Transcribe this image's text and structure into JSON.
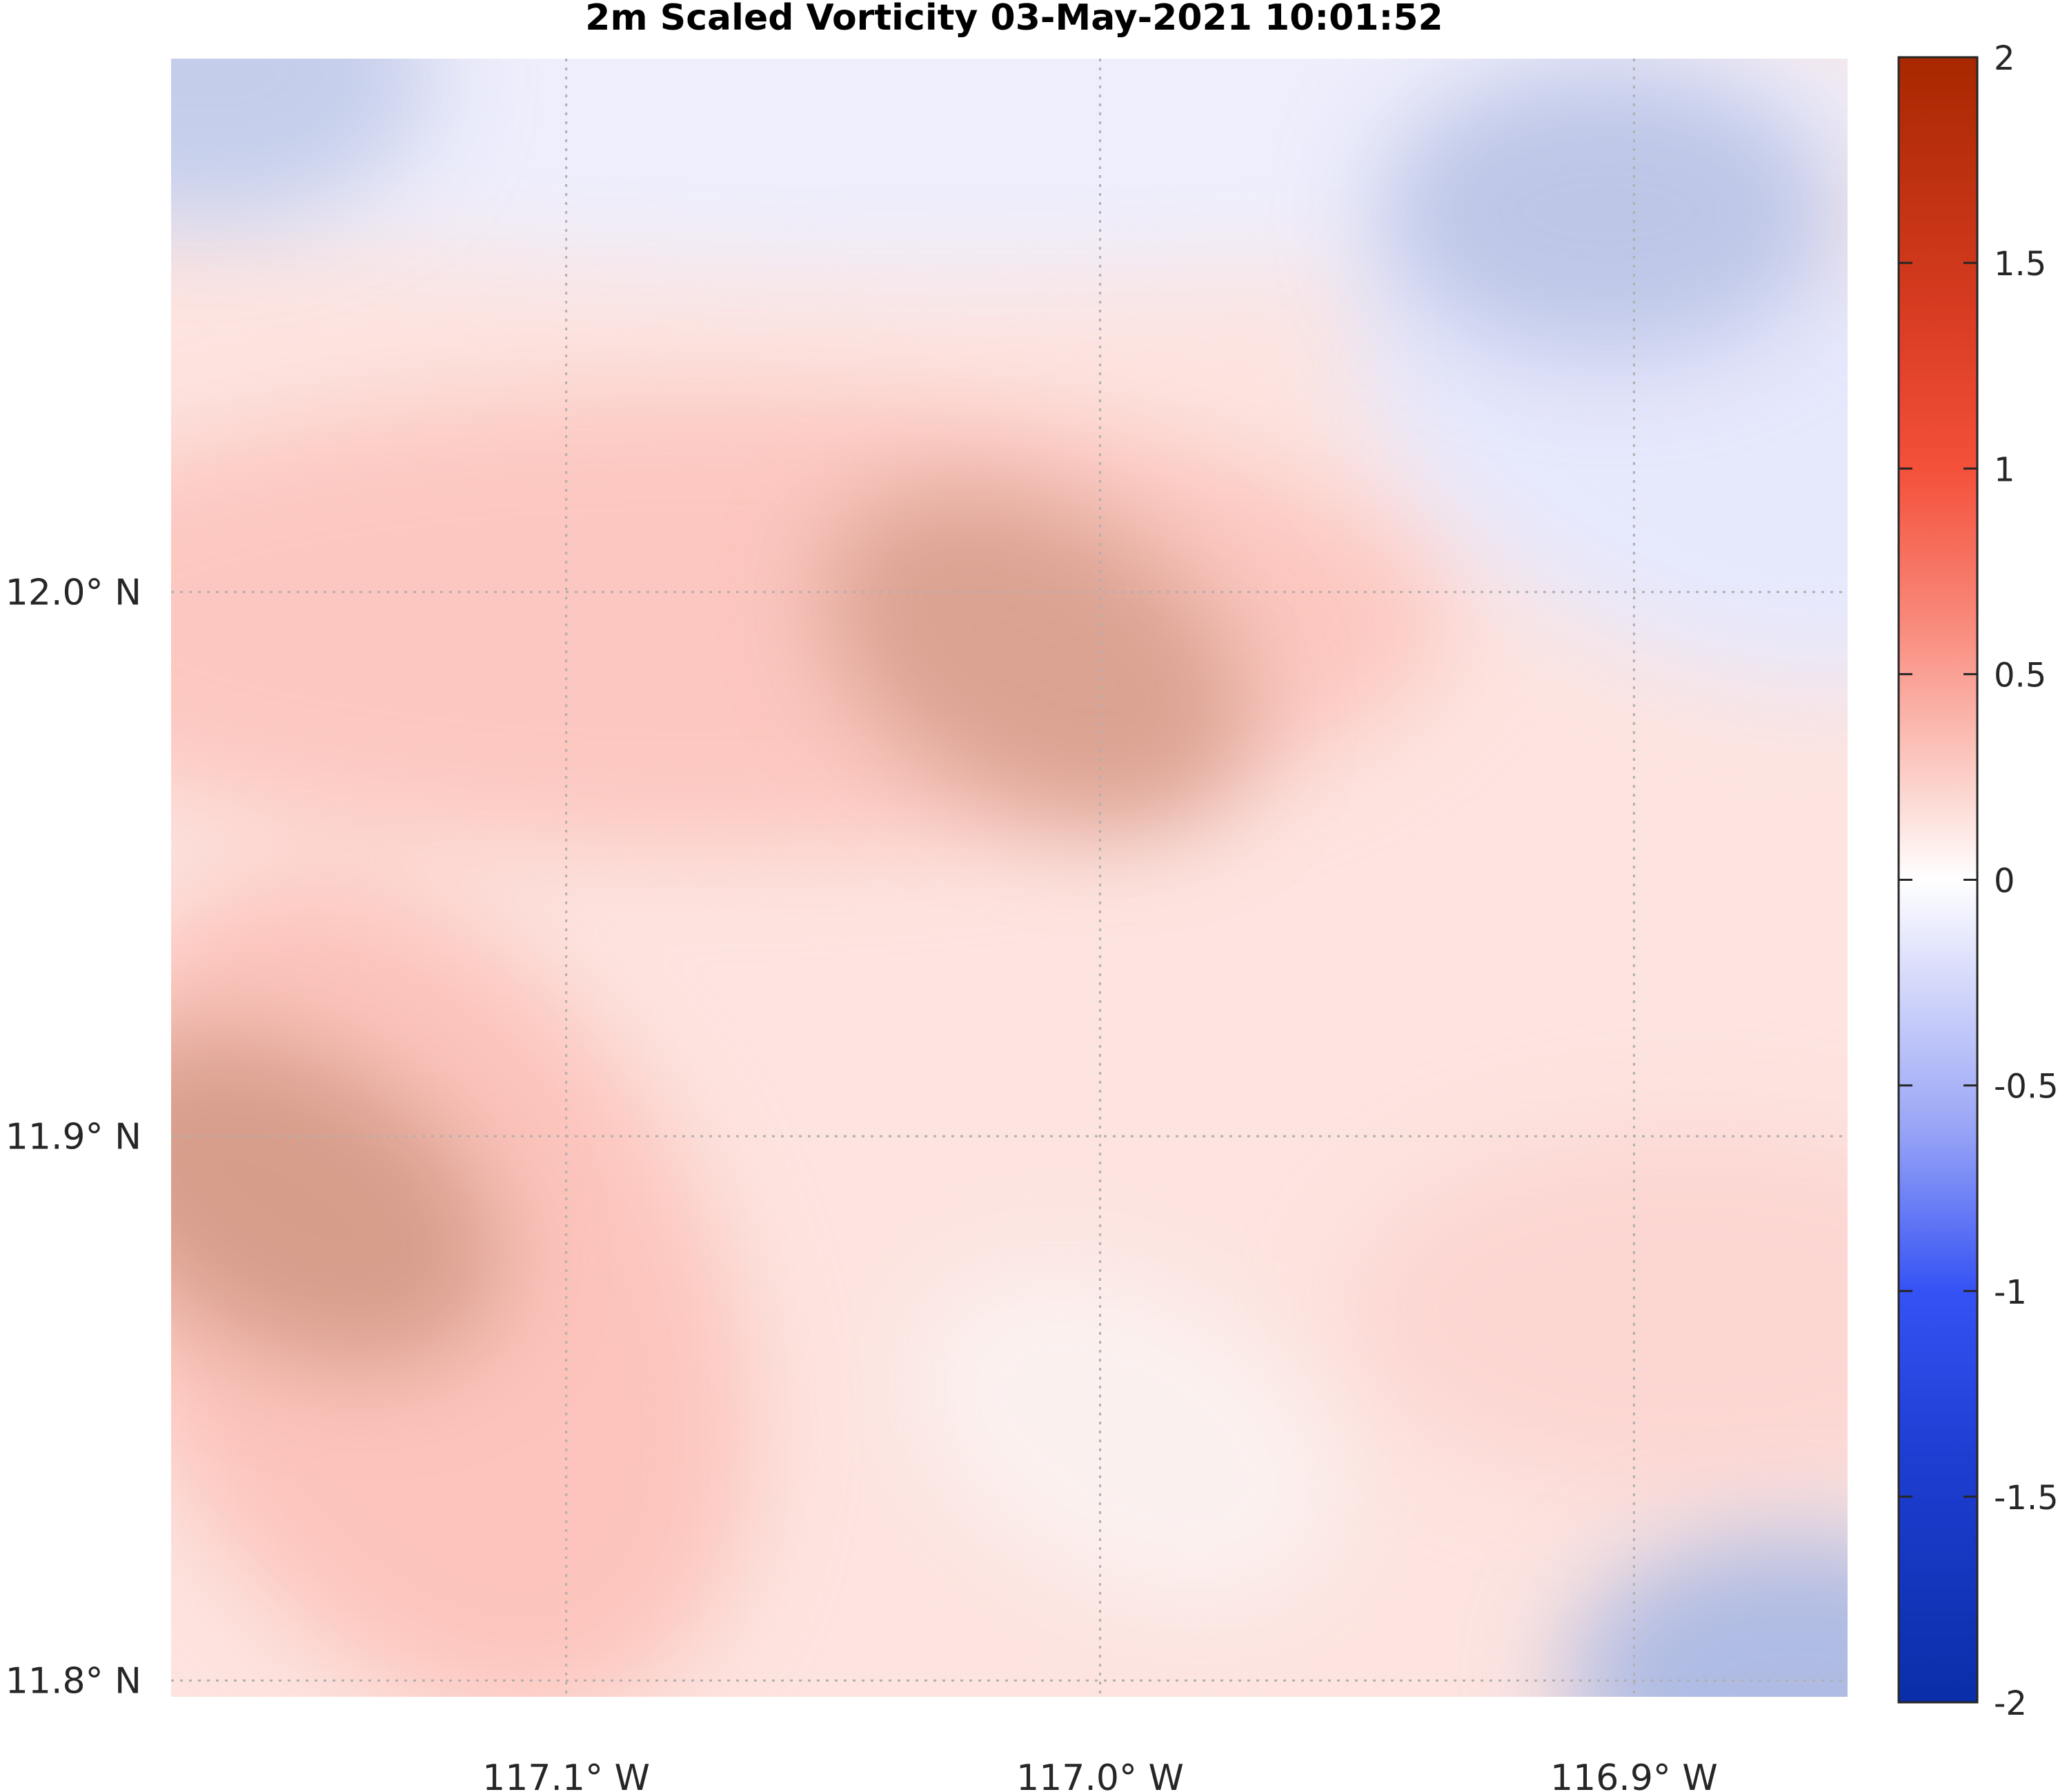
{
  "chart_data": {
    "type": "heatmap",
    "title": "2m Scaled Vorticity  03-May-2021 10:01:52",
    "xlabel": "",
    "ylabel": "",
    "xlim": [
      -117.174,
      -116.86
    ],
    "ylim": [
      11.797,
      12.098
    ],
    "x_ticks": [
      {
        "value": -117.1,
        "label": "117.1° W"
      },
      {
        "value": -117.0,
        "label": "117.0° W"
      },
      {
        "value": -116.9,
        "label": "116.9° W"
      }
    ],
    "y_ticks": [
      {
        "value": 12.0,
        "label": "12.0° N"
      },
      {
        "value": 11.9,
        "label": "11.9° N"
      },
      {
        "value": 11.8,
        "label": "11.8° N"
      }
    ],
    "grid": true,
    "grid_style": "dotted",
    "colorbar": {
      "position": "right",
      "range": [
        -2,
        2
      ],
      "ticks": [
        {
          "value": 2,
          "label": "2"
        },
        {
          "value": 1.5,
          "label": "1.5"
        },
        {
          "value": 1,
          "label": "1"
        },
        {
          "value": 0.5,
          "label": "0.5"
        },
        {
          "value": 0,
          "label": "0"
        },
        {
          "value": -0.5,
          "label": "-0.5"
        },
        {
          "value": -1,
          "label": "-1"
        },
        {
          "value": -1.5,
          "label": "-1.5"
        },
        {
          "value": -2,
          "label": "-2"
        }
      ],
      "colors": {
        "low": "#0a2ea8",
        "mid": "#ffffff",
        "high": "#a82800"
      }
    },
    "field_features": [
      {
        "lon": -117.152,
        "lat": 11.888,
        "value": 0.7
      },
      {
        "lon": -117.012,
        "lat": 11.988,
        "value": 0.65
      },
      {
        "lon": -116.995,
        "lat": 11.845,
        "value": 0.05
      },
      {
        "lon": -116.905,
        "lat": 12.07,
        "value": -0.35
      },
      {
        "lon": -117.168,
        "lat": 12.095,
        "value": -0.3
      },
      {
        "lon": -116.87,
        "lat": 11.8,
        "value": -0.45
      }
    ]
  }
}
